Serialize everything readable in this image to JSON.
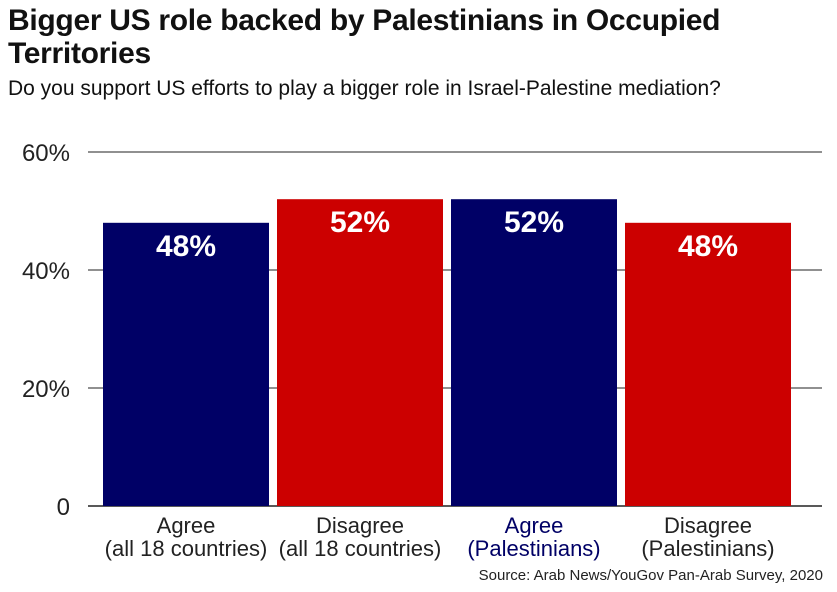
{
  "title": "Bigger US role backed by Palestinians in Occupied Territories",
  "subtitle": "Do you support US efforts to play a bigger role in Israel-Palestine mediation?",
  "source": "Source: Arab News/YouGov Pan-Arab Survey, 2020",
  "colors": {
    "agree": "#000066",
    "disagree": "#cc0000",
    "highlight_label": "#000066",
    "label": "#222222",
    "grid": "#222222"
  },
  "chart_data": {
    "type": "bar",
    "title": "Bigger US role backed by Palestinians in Occupied Territories",
    "subtitle": "Do you support US efforts to play a bigger role in Israel-Palestine mediation?",
    "categories": [
      [
        "Agree",
        "(all 18 countries)"
      ],
      [
        "Disagree",
        "(all 18 countries)"
      ],
      [
        "Agree",
        "(Palestinians)"
      ],
      [
        "Disagree",
        "(Palestinians)"
      ]
    ],
    "values": [
      48,
      52,
      52,
      48
    ],
    "value_labels": [
      "48%",
      "52%",
      "52%",
      "48%"
    ],
    "bar_colors": [
      "#000066",
      "#cc0000",
      "#000066",
      "#cc0000"
    ],
    "label_colors": [
      "#222222",
      "#222222",
      "#000066",
      "#222222"
    ],
    "yticks": [
      0,
      20,
      40,
      60
    ],
    "ytick_labels": [
      "0",
      "20%",
      "40%",
      "60%"
    ],
    "ylim": [
      0,
      60
    ],
    "xlabel": "",
    "ylabel": "",
    "grid": true,
    "legend": "none"
  }
}
